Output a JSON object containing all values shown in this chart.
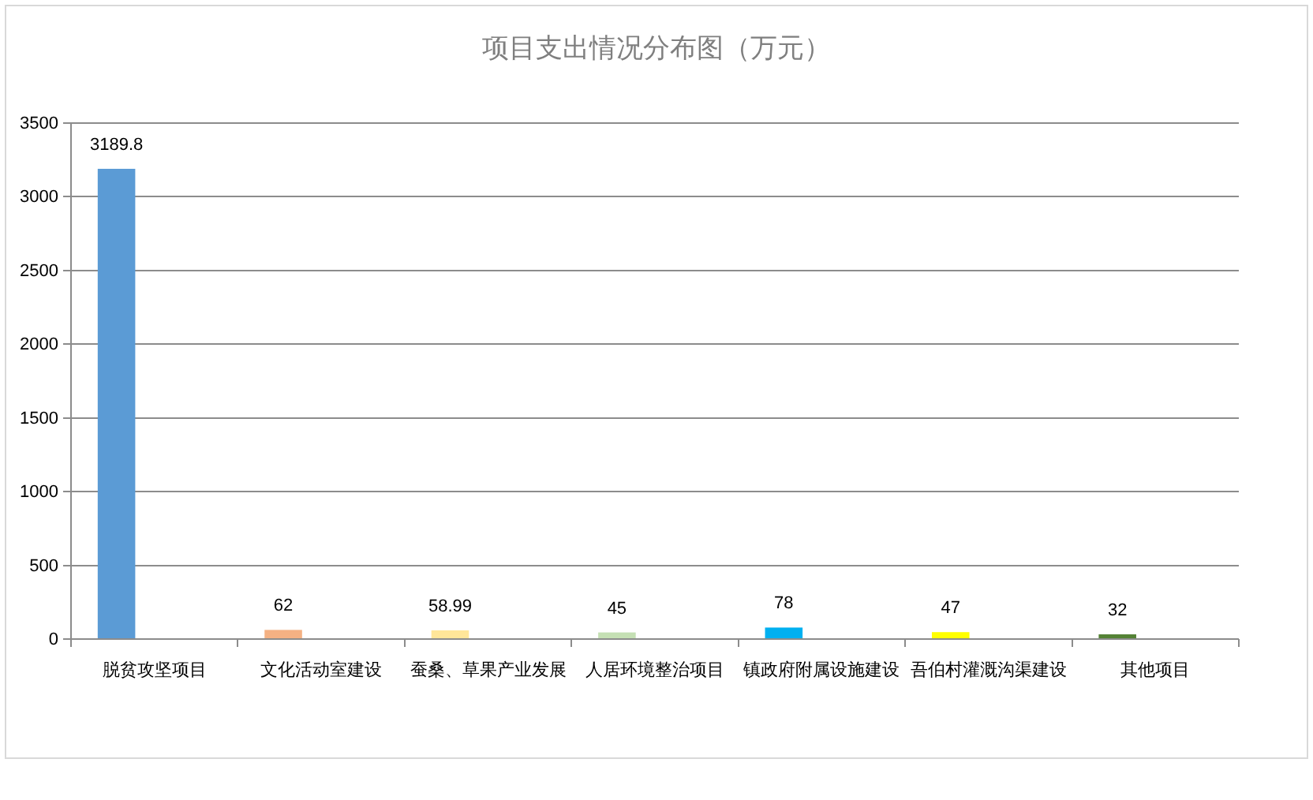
{
  "chart_data": {
    "type": "bar",
    "title": "项目支出情况分布图（万元）",
    "categories": [
      "脱贫攻坚项目",
      "文化活动室建设",
      "蚕桑、草果产业发展",
      "人居环境整治项目",
      "镇政府附属设施建设",
      "吾伯村灌溉沟渠建设",
      "其他项目"
    ],
    "values": [
      3189.8,
      62,
      58.99,
      45,
      78,
      47,
      32
    ],
    "colors": [
      "#5b9bd5",
      "#f4b183",
      "#ffe699",
      "#c5e0b4",
      "#00b0f0",
      "#ffff00",
      "#548235"
    ],
    "ylim": [
      0,
      3500
    ],
    "yticks": [
      0,
      500,
      1000,
      1500,
      2000,
      2500,
      3000,
      3500
    ],
    "grid": "y",
    "data_labels": true
  }
}
